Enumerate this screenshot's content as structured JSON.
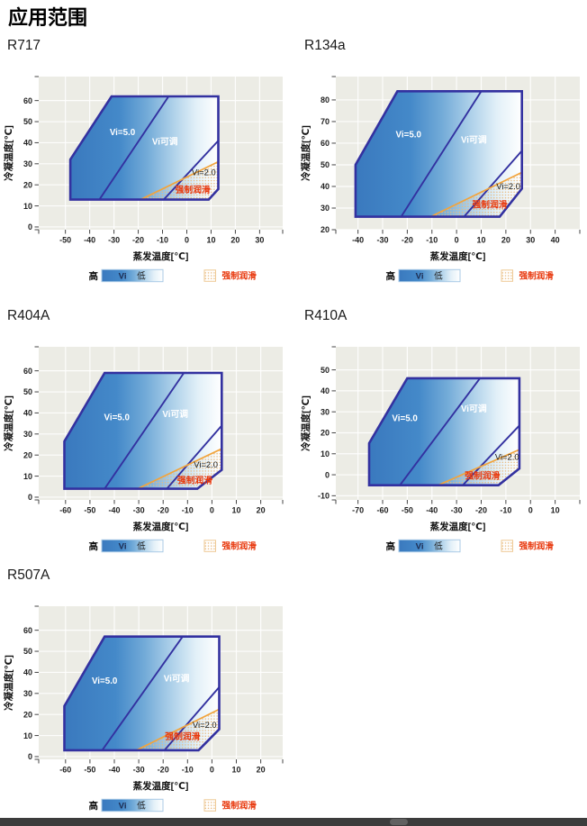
{
  "page": {
    "title": "应用范围"
  },
  "axis_labels": {
    "x": "蒸发温度[℃]",
    "y": "冷凝温度[℃]"
  },
  "legend": {
    "high": "高",
    "bar_left": "Vi",
    "bar_right": "低",
    "forced_lube": "强制润滑"
  },
  "colors": {
    "envelope_border": "#3331a0",
    "gradient_dark": "#3a79be",
    "gradient_mid": "#73abd8",
    "gradient_light": "#ffffff",
    "forced_lube_line": "#f2a43c",
    "forced_lube_text": "#e8380d",
    "plot_bg": "#ecece5",
    "grid": "#ffffff",
    "tick_text": "#222222",
    "dots": "#e9b97d",
    "white_label": "#ffffff",
    "dark_label": "#161616"
  },
  "chart_data": [
    {
      "type": "area",
      "id": "R717",
      "title": "R717",
      "xlabel": "蒸发温度[℃]",
      "ylabel": "冷凝温度[℃]",
      "x_ticks": [
        -50,
        -40,
        -30,
        -20,
        -10,
        0,
        10,
        20,
        30
      ],
      "y_ticks": [
        0,
        10,
        20,
        30,
        40,
        50,
        60
      ],
      "xlim": [
        -61,
        39.5
      ],
      "ylim": [
        -1.3,
        71.4
      ],
      "envelope": [
        [
          -48,
          13
        ],
        [
          -48,
          32
        ],
        [
          -31,
          62
        ],
        [
          13,
          62
        ],
        [
          13,
          18
        ],
        [
          9,
          13
        ]
      ],
      "vi5_boundary": [
        [
          -36,
          13
        ],
        [
          -7.5,
          62
        ]
      ],
      "vi20_boundary": [
        [
          -9.5,
          13
        ],
        [
          13,
          41
        ]
      ],
      "forced_lube_line": [
        [
          -19,
          13
        ],
        [
          13,
          31
        ]
      ],
      "forced_lube_region": [
        [
          -19,
          13
        ],
        [
          13,
          31
        ],
        [
          13,
          18
        ],
        [
          9,
          13
        ]
      ],
      "labels": [
        {
          "text": "Vi=5.0",
          "x": -26.5,
          "y": 45,
          "color": "white"
        },
        {
          "text": "Vi可调",
          "x": -9,
          "y": 40.5,
          "color": "white"
        },
        {
          "text": "Vi=2.0",
          "x": 7,
          "y": 26,
          "color": "dark"
        },
        {
          "text": "强制润滑",
          "x": 2.5,
          "y": 17.5,
          "color": "red"
        }
      ]
    },
    {
      "type": "area",
      "id": "R134a",
      "title": "R134a",
      "xlabel": "蒸发温度[℃]",
      "ylabel": "冷凝温度[℃]",
      "x_ticks": [
        -40,
        -30,
        -20,
        -10,
        0,
        10,
        20,
        30,
        40
      ],
      "y_ticks": [
        20,
        30,
        40,
        50,
        60,
        70,
        80
      ],
      "xlim": [
        -49,
        50
      ],
      "ylim": [
        20,
        90.8
      ],
      "envelope": [
        [
          -41,
          26
        ],
        [
          -41,
          50
        ],
        [
          -24,
          84
        ],
        [
          26.5,
          84
        ],
        [
          26.5,
          39
        ],
        [
          17.5,
          26
        ]
      ],
      "vi5_boundary": [
        [
          -22.5,
          26
        ],
        [
          10,
          84
        ]
      ],
      "vi20_boundary": [
        [
          3,
          26
        ],
        [
          26.5,
          56.5
        ]
      ],
      "forced_lube_line": [
        [
          -10.5,
          26
        ],
        [
          26.5,
          46.5
        ]
      ],
      "forced_lube_region": [
        [
          -10.5,
          26
        ],
        [
          26.5,
          46.5
        ],
        [
          26.5,
          39
        ],
        [
          17.5,
          26
        ]
      ],
      "labels": [
        {
          "text": "Vi=5.0",
          "x": -19.5,
          "y": 64,
          "color": "white"
        },
        {
          "text": "Vi可调",
          "x": 7,
          "y": 61.5,
          "color": "white"
        },
        {
          "text": "Vi=2.0",
          "x": 21,
          "y": 40,
          "color": "dark"
        },
        {
          "text": "强制润滑",
          "x": 13.5,
          "y": 31.5,
          "color": "red"
        }
      ]
    },
    {
      "type": "area",
      "id": "R404A",
      "title": "R404A",
      "xlabel": "蒸发温度[℃]",
      "ylabel": "冷凝温度[℃]",
      "x_ticks": [
        -60,
        -50,
        -40,
        -30,
        -20,
        -10,
        0,
        10,
        20
      ],
      "y_ticks": [
        0,
        10,
        20,
        30,
        40,
        50,
        60
      ],
      "xlim": [
        -71,
        29
      ],
      "ylim": [
        -1.3,
        71.4
      ],
      "envelope": [
        [
          -60.5,
          4
        ],
        [
          -60.5,
          26.5
        ],
        [
          -44,
          59
        ],
        [
          4,
          59
        ],
        [
          4,
          13
        ],
        [
          -6,
          4
        ]
      ],
      "vi5_boundary": [
        [
          -44,
          4
        ],
        [
          -11.5,
          59
        ]
      ],
      "vi20_boundary": [
        [
          -18.5,
          4
        ],
        [
          4,
          34
        ]
      ],
      "forced_lube_line": [
        [
          -30.5,
          4
        ],
        [
          4,
          23
        ]
      ],
      "forced_lube_region": [
        [
          -30.5,
          4
        ],
        [
          4,
          23
        ],
        [
          4,
          13
        ],
        [
          -6,
          4
        ]
      ],
      "labels": [
        {
          "text": "Vi=5.0",
          "x": -39,
          "y": 38,
          "color": "white"
        },
        {
          "text": "Vi可调",
          "x": -15,
          "y": 39.5,
          "color": "white"
        },
        {
          "text": "Vi=2.0",
          "x": -2.5,
          "y": 15.5,
          "color": "dark"
        },
        {
          "text": "强制润滑",
          "x": -7,
          "y": 8,
          "color": "red"
        }
      ]
    },
    {
      "type": "area",
      "id": "R410A",
      "title": "R410A",
      "xlabel": "蒸发温度[℃]",
      "ylabel": "冷凝温度[℃]",
      "x_ticks": [
        -70,
        -60,
        -50,
        -40,
        -30,
        -20,
        -10,
        0,
        10
      ],
      "y_ticks": [
        -10,
        0,
        10,
        20,
        30,
        40,
        50
      ],
      "xlim": [
        -79,
        20
      ],
      "ylim": [
        -12,
        61
      ],
      "envelope": [
        [
          -65.5,
          -5
        ],
        [
          -65.5,
          15
        ],
        [
          -50,
          46
        ],
        [
          -4.5,
          46
        ],
        [
          -4.5,
          3
        ],
        [
          -13,
          -5
        ]
      ],
      "vi5_boundary": [
        [
          -53,
          -5
        ],
        [
          -20.5,
          46
        ]
      ],
      "vi20_boundary": [
        [
          -27.5,
          -5
        ],
        [
          -4.5,
          23.5
        ]
      ],
      "forced_lube_line": [
        [
          -37.5,
          -5
        ],
        [
          -4.5,
          12
        ]
      ],
      "forced_lube_region": [
        [
          -37.5,
          -5
        ],
        [
          -4.5,
          12
        ],
        [
          -4.5,
          3
        ],
        [
          -13,
          -5
        ]
      ],
      "labels": [
        {
          "text": "Vi=5.0",
          "x": -51,
          "y": 27,
          "color": "white"
        },
        {
          "text": "Vi可调",
          "x": -23,
          "y": 31.5,
          "color": "white"
        },
        {
          "text": "Vi=2.0",
          "x": -9.5,
          "y": 8.5,
          "color": "dark"
        },
        {
          "text": "强制润滑",
          "x": -19.5,
          "y": -0.5,
          "color": "red"
        }
      ]
    },
    {
      "type": "area",
      "id": "R507A",
      "title": "R507A",
      "xlabel": "蒸发温度[℃]",
      "ylabel": "冷凝温度[℃]",
      "x_ticks": [
        -60,
        -50,
        -40,
        -30,
        -20,
        -10,
        0,
        10,
        20
      ],
      "y_ticks": [
        0,
        10,
        20,
        30,
        40,
        50,
        60
      ],
      "xlim": [
        -71,
        29
      ],
      "ylim": [
        -1.3,
        71.4
      ],
      "envelope": [
        [
          -60.5,
          3
        ],
        [
          -60.5,
          24
        ],
        [
          -44,
          57
        ],
        [
          3,
          57
        ],
        [
          3,
          13
        ],
        [
          -5.5,
          3
        ]
      ],
      "vi5_boundary": [
        [
          -45,
          3
        ],
        [
          -12,
          57
        ]
      ],
      "vi20_boundary": [
        [
          -19.5,
          3
        ],
        [
          3,
          33
        ]
      ],
      "forced_lube_line": [
        [
          -31,
          3
        ],
        [
          3,
          22.5
        ]
      ],
      "forced_lube_region": [
        [
          -31,
          3
        ],
        [
          3,
          22.5
        ],
        [
          3,
          13
        ],
        [
          -5.5,
          3
        ]
      ],
      "labels": [
        {
          "text": "Vi=5.0",
          "x": -44,
          "y": 36,
          "color": "white"
        },
        {
          "text": "Vi可调",
          "x": -14.5,
          "y": 37,
          "color": "white"
        },
        {
          "text": "Vi=2.0",
          "x": -3,
          "y": 15,
          "color": "dark"
        },
        {
          "text": "强制润滑",
          "x": -12,
          "y": 9.5,
          "color": "red"
        }
      ]
    }
  ]
}
